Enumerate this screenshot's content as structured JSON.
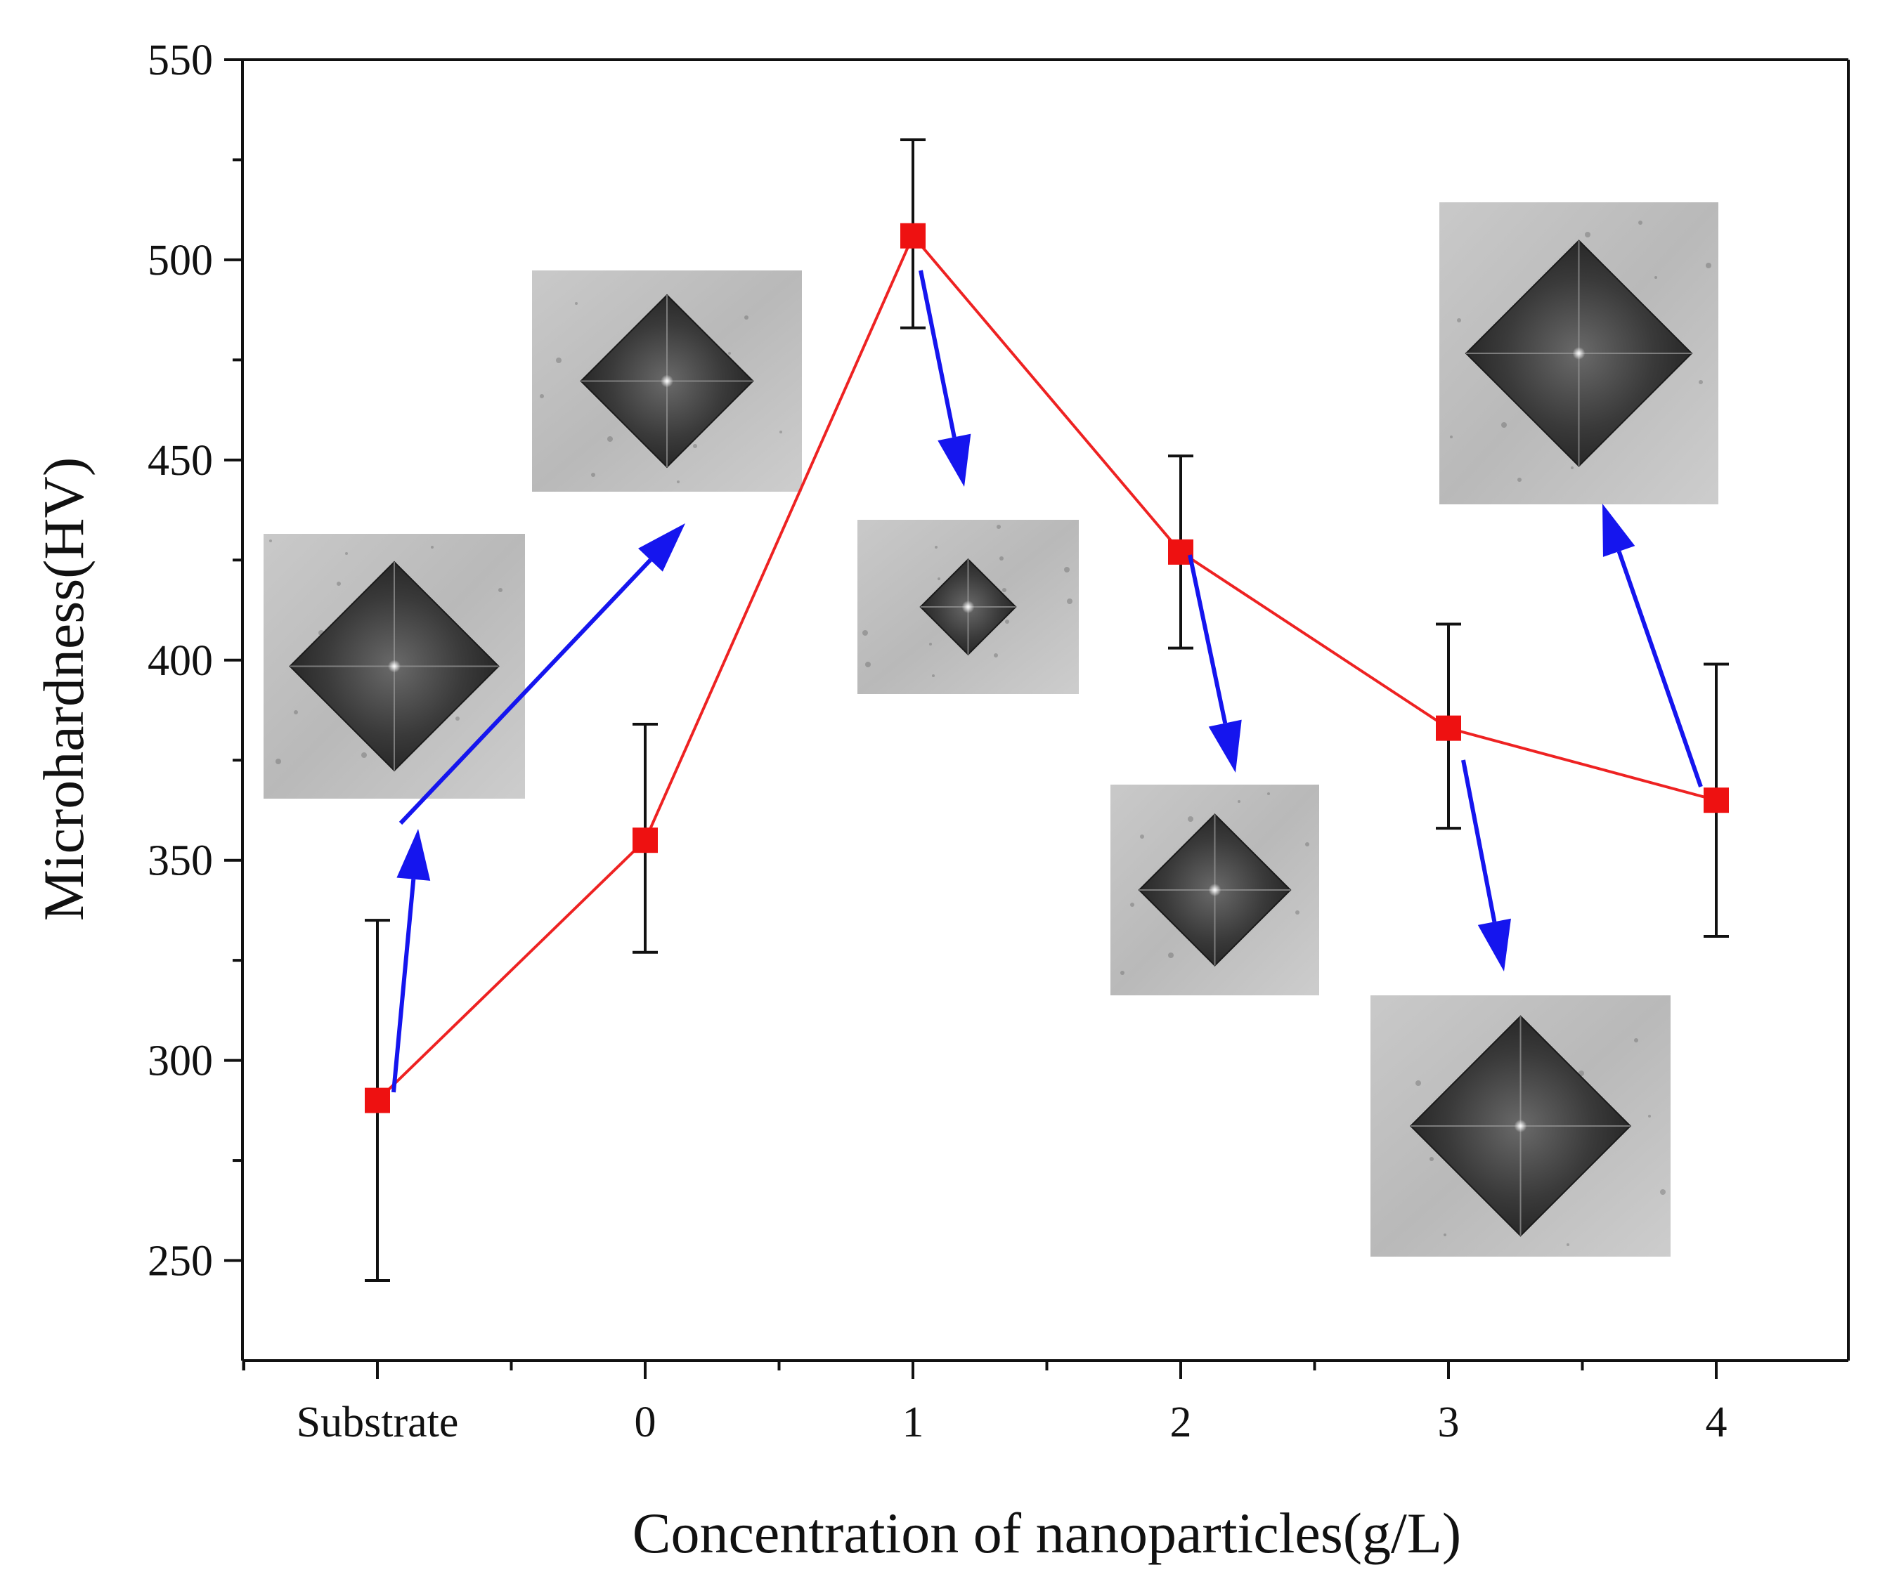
{
  "chart_data": {
    "type": "line",
    "title": "",
    "xlabel": "Concentration of nanoparticles(g/L)",
    "ylabel": "Microhardness(HV)",
    "categories": [
      "Substrate",
      "0",
      "1",
      "2",
      "3",
      "4"
    ],
    "ylim": [
      225,
      550
    ],
    "yticks": [
      250,
      300,
      350,
      400,
      450,
      500,
      550
    ],
    "series": [
      {
        "name": "Microhardness",
        "values": [
          290,
          355,
          506,
          427,
          383,
          365
        ],
        "error_low": [
          245,
          327,
          483,
          403,
          358,
          331
        ],
        "error_high": [
          335,
          384,
          530,
          451,
          409,
          399
        ]
      }
    ],
    "insets": [
      {
        "name": "Substrate",
        "value_anchor": 290,
        "direction": "up"
      },
      {
        "name": "0",
        "value_anchor": 355,
        "direction": "up"
      },
      {
        "name": "1",
        "value_anchor": 506,
        "direction": "down"
      },
      {
        "name": "2",
        "value_anchor": 427,
        "direction": "down"
      },
      {
        "name": "3",
        "value_anchor": 383,
        "direction": "down"
      },
      {
        "name": "4",
        "value_anchor": 365,
        "direction": "up"
      }
    ],
    "grid": false,
    "legend": "none"
  },
  "colors": {
    "line": "#ee2222",
    "marker": "#ee1111",
    "arrow": "#1515ee",
    "axis": "#111111",
    "error_bar": "#111111"
  }
}
